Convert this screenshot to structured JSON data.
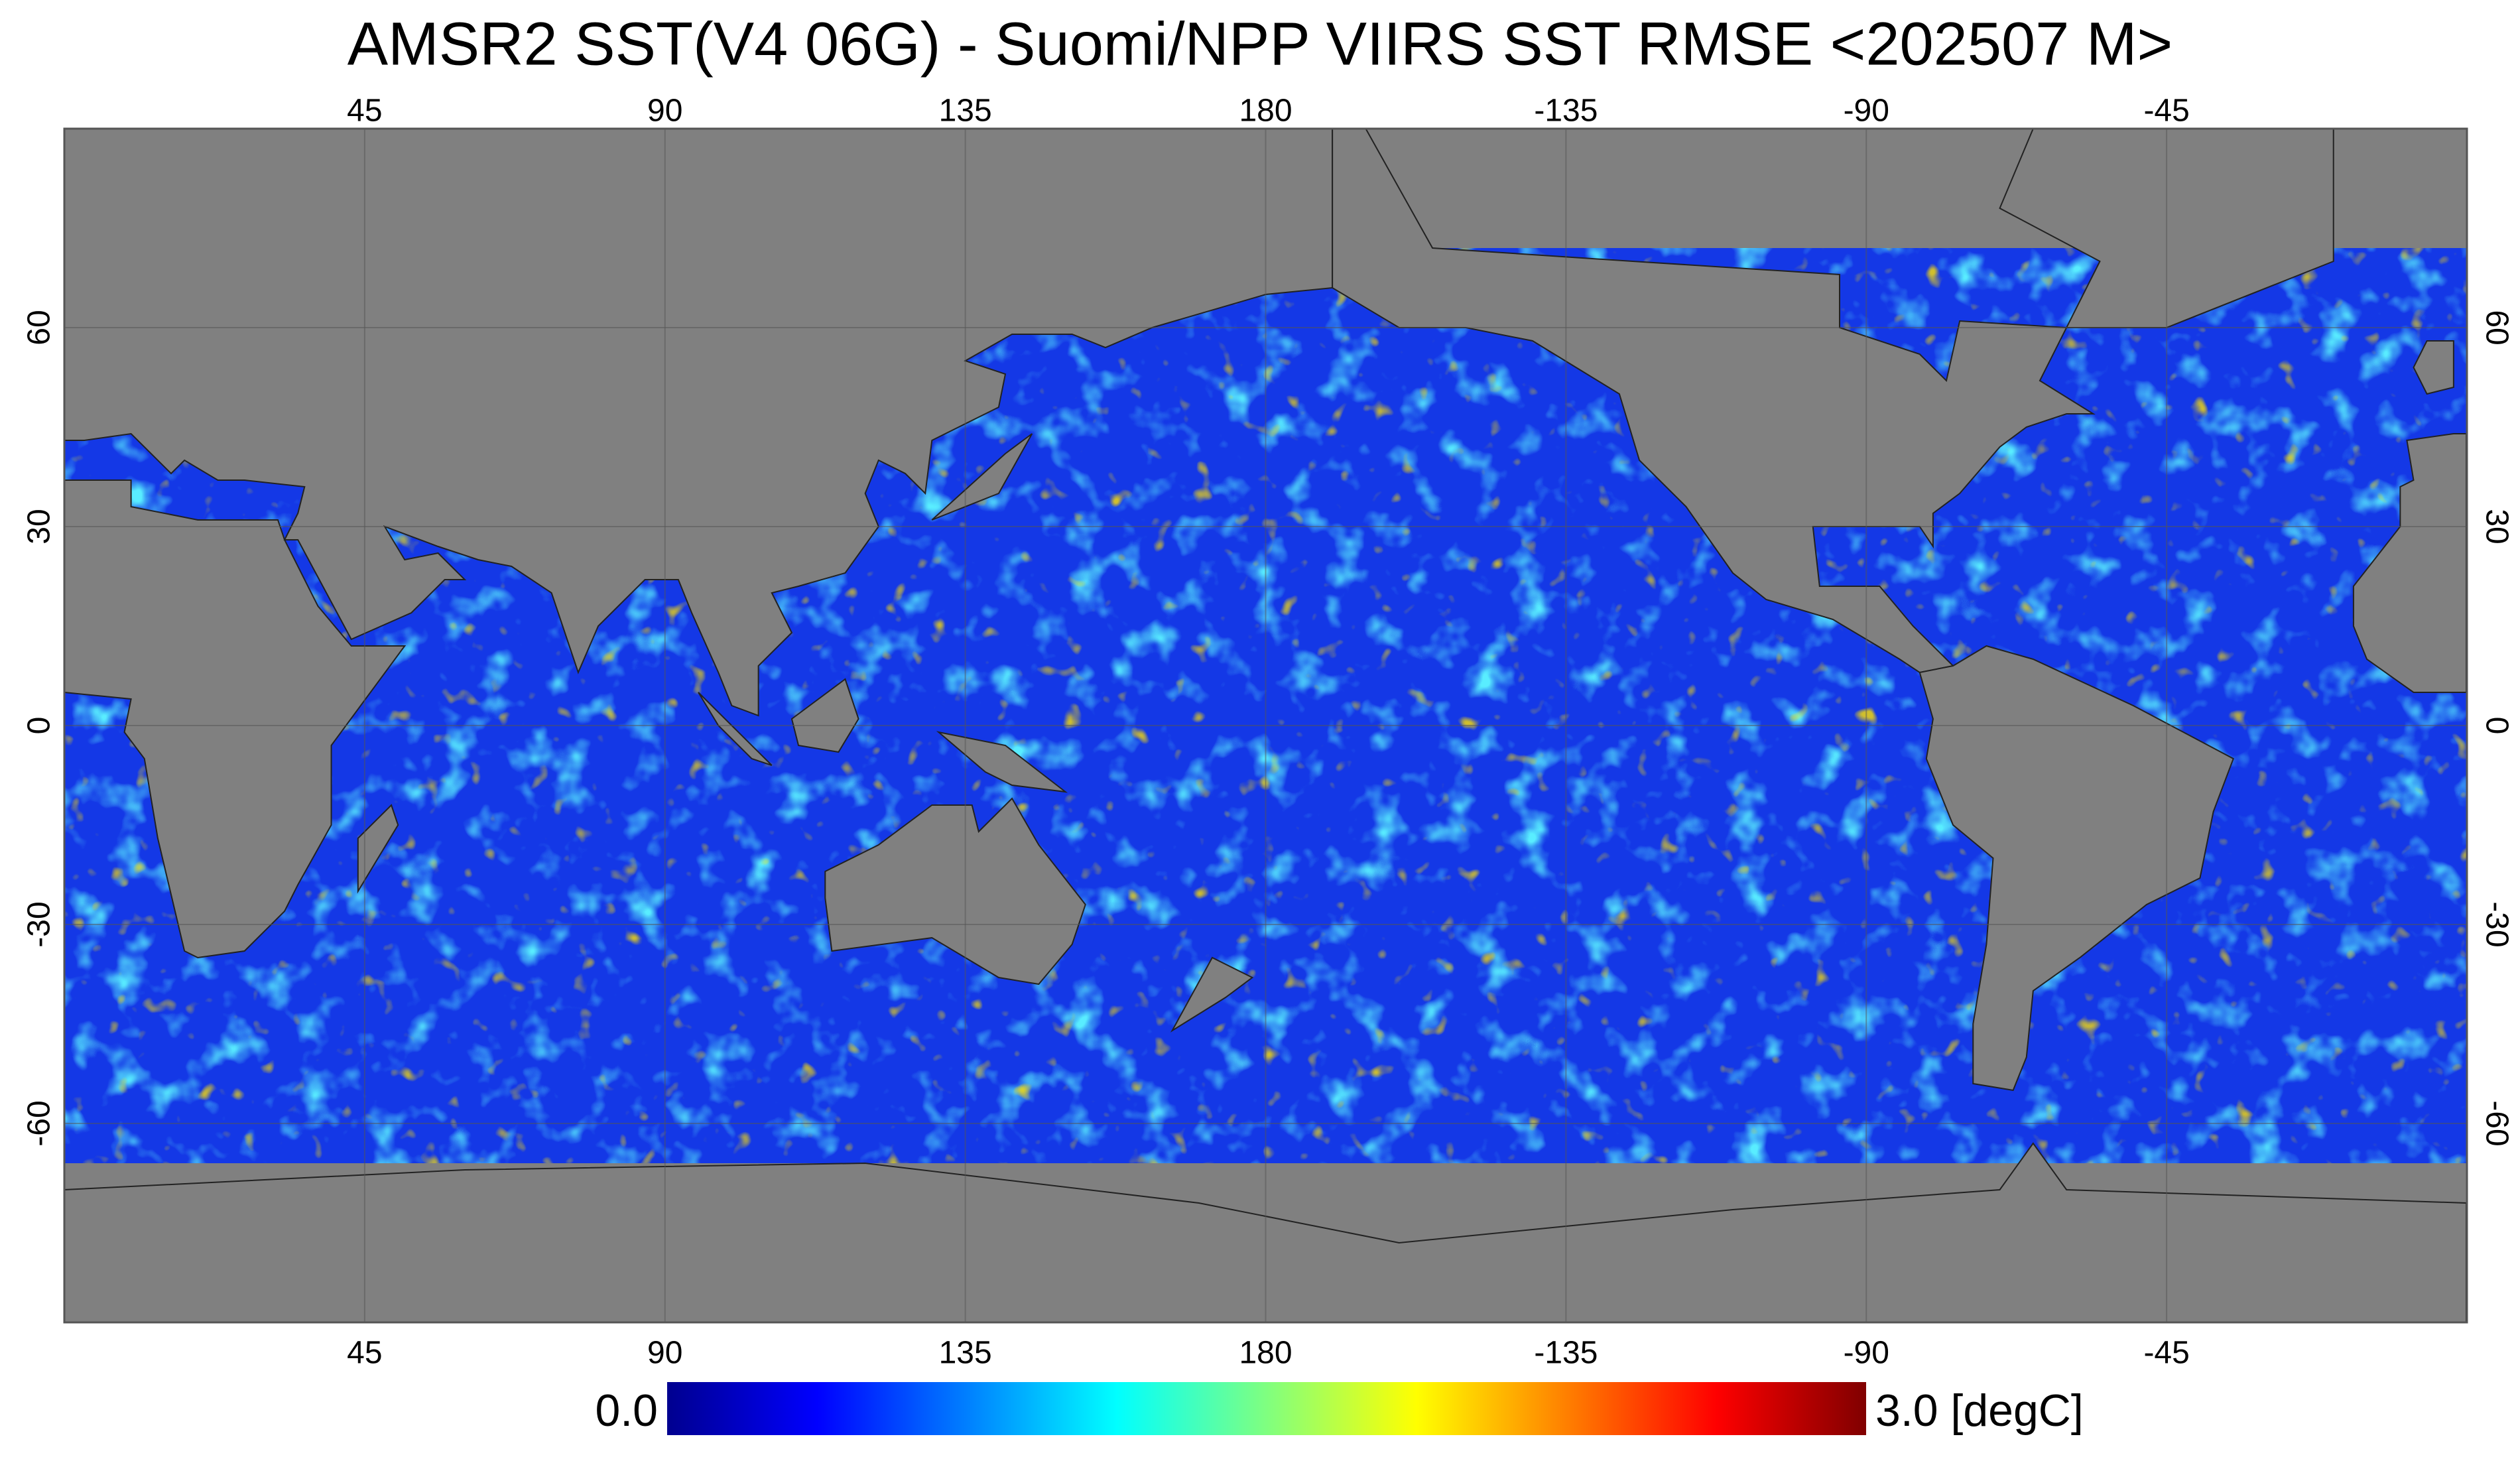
{
  "title": "AMSR2 SST(V4 06G) - Suomi/NPP VIIRS SST RMSE <202507 M>",
  "map": {
    "xlim": [
      0,
      360
    ],
    "ylim": [
      -90,
      90
    ],
    "xticks": [
      45,
      90,
      135,
      180,
      -135,
      -90,
      -45
    ],
    "yticks": [
      60,
      30,
      0,
      -30,
      -60
    ]
  },
  "colorbar": {
    "min": {
      "value": 0,
      "label": "0.0"
    },
    "max": {
      "value": 3,
      "label": "3.0 [degC]"
    }
  }
}
